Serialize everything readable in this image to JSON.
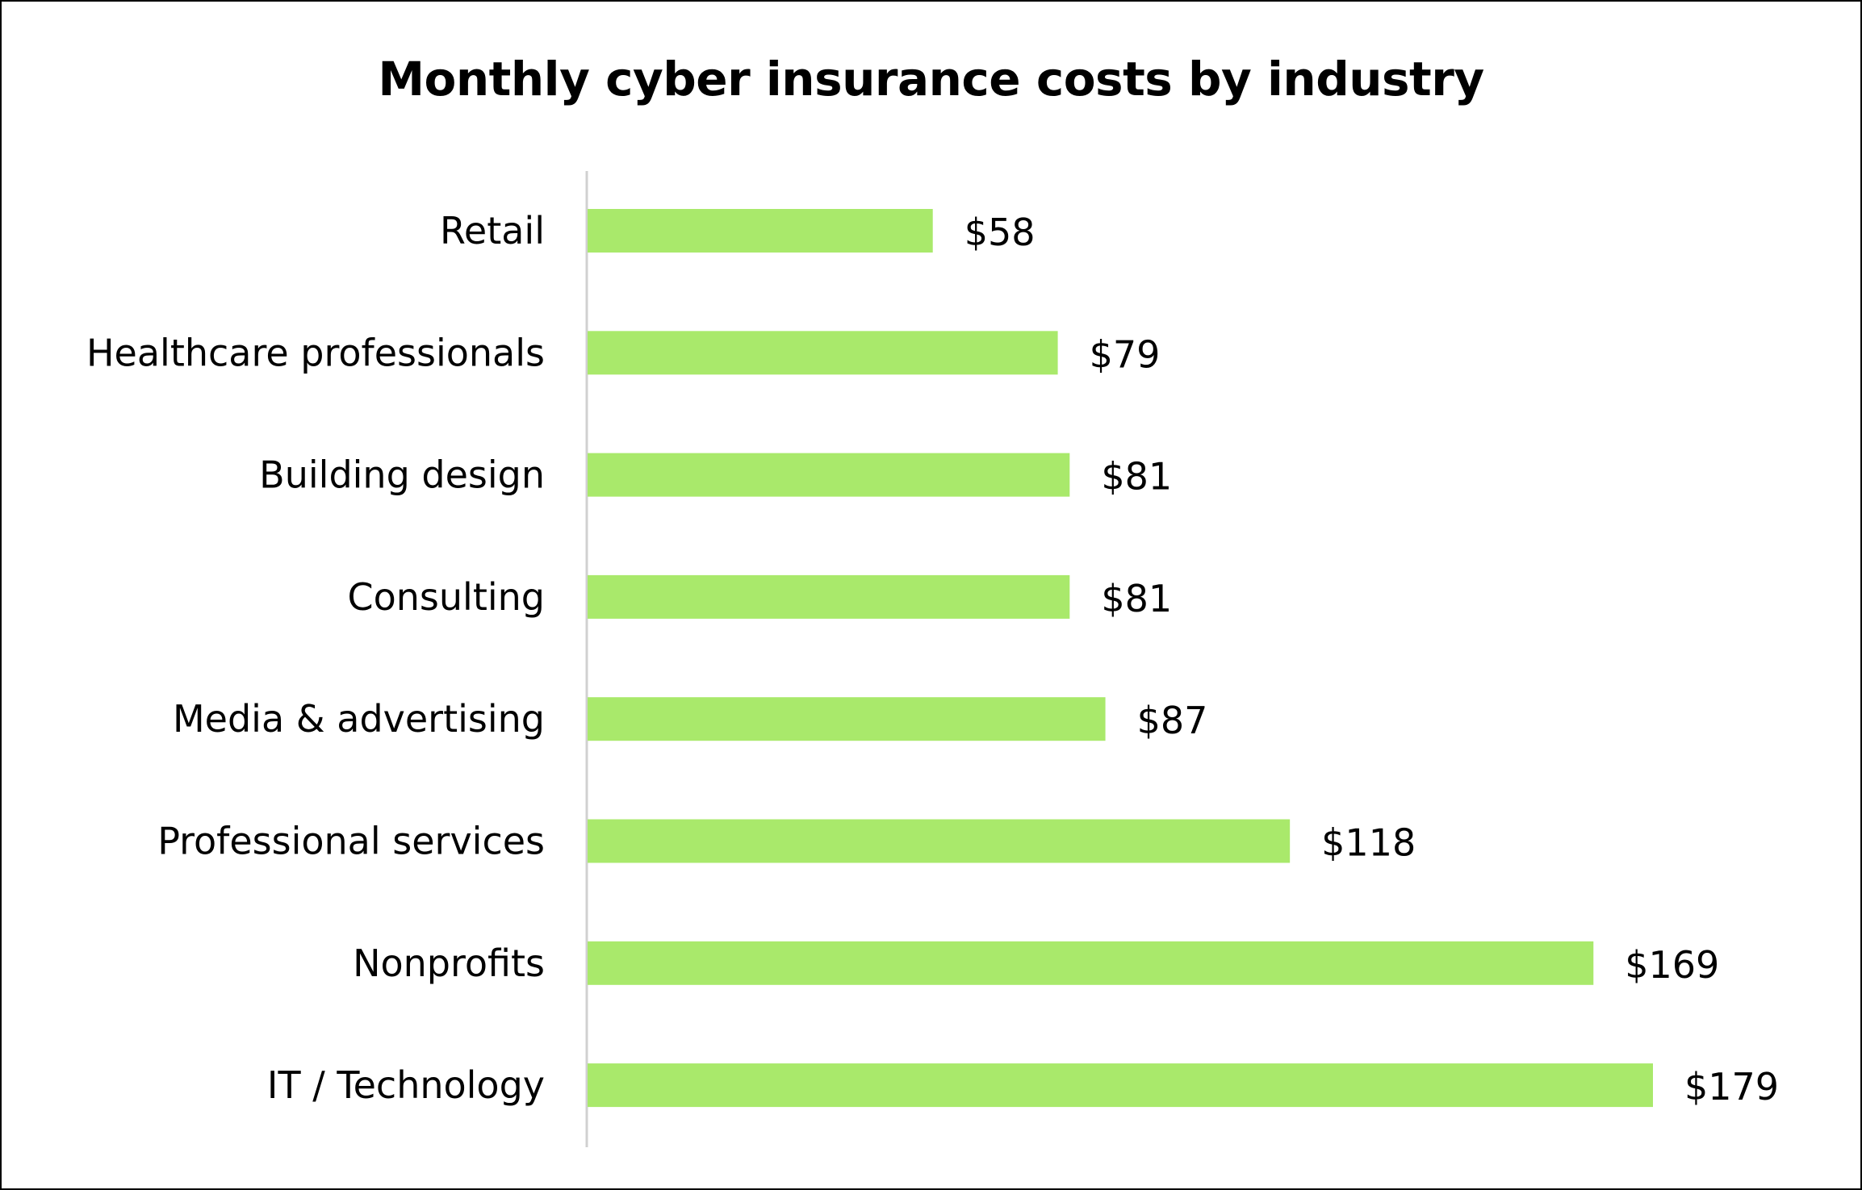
{
  "chart_data": {
    "type": "bar",
    "orientation": "horizontal",
    "title": "Monthly cyber insurance costs by industry",
    "categories": [
      "Retail",
      "Healthcare professionals",
      "Building design",
      "Consulting",
      "Media & advertising",
      "Professional services",
      "Nonprofits",
      "IT / Technology"
    ],
    "values": [
      58,
      79,
      81,
      81,
      87,
      118,
      169,
      179
    ],
    "value_labels": [
      "$58",
      "$79",
      "$81",
      "$81",
      "$87",
      "$118",
      "$169",
      "$179"
    ],
    "xlim": [
      0,
      179
    ],
    "grid": false,
    "legend": "none",
    "bar_color": "#a9e96b",
    "axis_color": "#d0d0d0"
  }
}
